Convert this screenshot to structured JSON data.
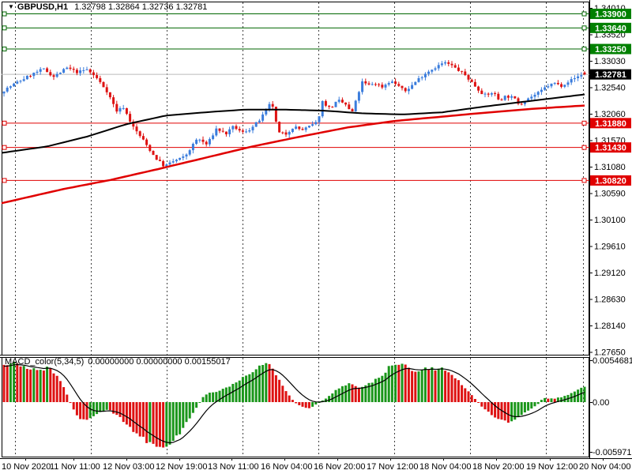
{
  "window": {
    "marker_icon": "▼",
    "symbol": "GBPUSD,H1",
    "ohlc_text": "1.32798 1.32864 1.32736 1.32781"
  },
  "chart_data": {
    "type": "candlestick",
    "symbol": "GBPUSD",
    "timeframe": "H1",
    "open": "1.32798",
    "high": "1.32864",
    "low": "1.32736",
    "close": "1.32781",
    "price_axis": {
      "labels": [
        "1.34010",
        "1.33520",
        "1.33030",
        "1.32540",
        "1.32060",
        "1.31570",
        "1.31080",
        "1.30590",
        "1.30100",
        "1.29610",
        "1.29120",
        "1.28630",
        "1.28140",
        "1.27650"
      ]
    },
    "time_labels": [
      "10 Nov 2020",
      "11 Nov 11:00",
      "12 Nov 03:00",
      "12 Nov 19:00",
      "13 Nov 11:00",
      "16 Nov 04:00",
      "16 Nov 20:00",
      "17 Nov 12:00",
      "18 Nov 04:00",
      "18 Nov 20:00",
      "19 Nov 12:00",
      "20 Nov 04:00"
    ],
    "day_gridlines_x": [
      19,
      115,
      211,
      307,
      403,
      499,
      595,
      691,
      738
    ],
    "resistance_levels": [
      {
        "label": "1.33900"
      },
      {
        "label": "1.33640"
      },
      {
        "label": "1.33250"
      }
    ],
    "support_levels": [
      {
        "label": "1.31880"
      },
      {
        "label": "1.31430"
      },
      {
        "label": "1.30820"
      }
    ],
    "current_price_label": "1.32781",
    "price_path": [
      [
        4,
        1.3248
      ],
      [
        20,
        1.3262
      ],
      [
        40,
        1.3278
      ],
      [
        55,
        1.3288
      ],
      [
        68,
        1.3274
      ],
      [
        85,
        1.329
      ],
      [
        98,
        1.3282
      ],
      [
        110,
        1.3287
      ],
      [
        122,
        1.3272
      ],
      [
        135,
        1.3248
      ],
      [
        148,
        1.321
      ],
      [
        156,
        1.3218
      ],
      [
        168,
        1.3182
      ],
      [
        182,
        1.3155
      ],
      [
        196,
        1.3125
      ],
      [
        208,
        1.3108
      ],
      [
        220,
        1.3118
      ],
      [
        234,
        1.3126
      ],
      [
        250,
        1.316
      ],
      [
        262,
        1.3148
      ],
      [
        274,
        1.3178
      ],
      [
        286,
        1.3168
      ],
      [
        296,
        1.3182
      ],
      [
        306,
        1.317
      ],
      [
        318,
        1.3178
      ],
      [
        330,
        1.3196
      ],
      [
        344,
        1.3228
      ],
      [
        352,
        1.317
      ],
      [
        362,
        1.3168
      ],
      [
        372,
        1.3182
      ],
      [
        382,
        1.3175
      ],
      [
        392,
        1.3182
      ],
      [
        402,
        1.319
      ],
      [
        408,
        1.3228
      ],
      [
        418,
        1.3215
      ],
      [
        428,
        1.323
      ],
      [
        438,
        1.3222
      ],
      [
        445,
        1.3205
      ],
      [
        452,
        1.3235
      ],
      [
        458,
        1.3264
      ],
      [
        466,
        1.3258
      ],
      [
        474,
        1.3262
      ],
      [
        484,
        1.3255
      ],
      [
        494,
        1.3266
      ],
      [
        504,
        1.3258
      ],
      [
        512,
        1.3246
      ],
      [
        520,
        1.3256
      ],
      [
        530,
        1.327
      ],
      [
        540,
        1.3282
      ],
      [
        552,
        1.3292
      ],
      [
        562,
        1.33
      ],
      [
        570,
        1.3296
      ],
      [
        578,
        1.3288
      ],
      [
        588,
        1.3278
      ],
      [
        598,
        1.3262
      ],
      [
        608,
        1.3246
      ],
      [
        616,
        1.3238
      ],
      [
        624,
        1.3246
      ],
      [
        632,
        1.323
      ],
      [
        640,
        1.3238
      ],
      [
        650,
        1.3235
      ],
      [
        658,
        1.3222
      ],
      [
        666,
        1.3232
      ],
      [
        674,
        1.3238
      ],
      [
        682,
        1.3244
      ],
      [
        692,
        1.3256
      ],
      [
        702,
        1.3262
      ],
      [
        710,
        1.3257
      ],
      [
        718,
        1.3264
      ],
      [
        726,
        1.327
      ],
      [
        734,
        1.3276
      ],
      [
        740,
        1.3281
      ],
      [
        744,
        1.3278
      ]
    ],
    "ma_fast_black": [
      [
        2,
        1.3133
      ],
      [
        60,
        1.3145
      ],
      [
        110,
        1.3163
      ],
      [
        160,
        1.3186
      ],
      [
        210,
        1.3202
      ],
      [
        260,
        1.3208
      ],
      [
        310,
        1.3213
      ],
      [
        360,
        1.3213
      ],
      [
        410,
        1.3211
      ],
      [
        460,
        1.3206
      ],
      [
        510,
        1.3204
      ],
      [
        560,
        1.3208
      ],
      [
        610,
        1.3218
      ],
      [
        660,
        1.3227
      ],
      [
        700,
        1.3234
      ],
      [
        745,
        1.3242
      ]
    ],
    "ma_slow_red": [
      [
        2,
        1.304
      ],
      [
        80,
        1.3066
      ],
      [
        140,
        1.3083
      ],
      [
        200,
        1.3103
      ],
      [
        260,
        1.3124
      ],
      [
        320,
        1.3145
      ],
      [
        380,
        1.3163
      ],
      [
        440,
        1.318
      ],
      [
        500,
        1.3192
      ],
      [
        560,
        1.32
      ],
      [
        620,
        1.3208
      ],
      [
        680,
        1.3215
      ],
      [
        745,
        1.3221
      ]
    ],
    "macd": {
      "label": "MACD_color(5,34,5)",
      "values_text": "0.00000000 0.00000000 0.00155017",
      "axis_max_label": "0.0054681",
      "axis_zero_label": "0.00",
      "axis_min_label": "-0.0059717",
      "hist_path": [
        [
          4,
          0.0047
        ],
        [
          20,
          0.0049
        ],
        [
          35,
          0.0043
        ],
        [
          50,
          0.004
        ],
        [
          62,
          0.0043
        ],
        [
          72,
          0.0034
        ],
        [
          82,
          0.0016
        ],
        [
          90,
          -0.0004
        ],
        [
          100,
          -0.002
        ],
        [
          108,
          -0.0024
        ],
        [
          118,
          -0.0018
        ],
        [
          128,
          -0.0012
        ],
        [
          138,
          -0.001
        ],
        [
          148,
          -0.0016
        ],
        [
          158,
          -0.0026
        ],
        [
          170,
          -0.0037
        ],
        [
          184,
          -0.0048
        ],
        [
          198,
          -0.0055
        ],
        [
          206,
          -0.0057
        ],
        [
          216,
          -0.0051
        ],
        [
          228,
          -0.0038
        ],
        [
          238,
          -0.0022
        ],
        [
          248,
          -0.0008
        ],
        [
          256,
          0.0005
        ],
        [
          266,
          0.0013
        ],
        [
          276,
          0.0013
        ],
        [
          288,
          0.0019
        ],
        [
          300,
          0.0026
        ],
        [
          312,
          0.0032
        ],
        [
          322,
          0.004
        ],
        [
          332,
          0.0049
        ],
        [
          340,
          0.0047
        ],
        [
          350,
          0.0034
        ],
        [
          360,
          0.0016
        ],
        [
          370,
          0.0003
        ],
        [
          378,
          -0.0004
        ],
        [
          388,
          -0.0008
        ],
        [
          396,
          -0.0006
        ],
        [
          404,
          -0.0001
        ],
        [
          412,
          0.0004
        ],
        [
          422,
          0.0012
        ],
        [
          432,
          0.0019
        ],
        [
          440,
          0.0023
        ],
        [
          448,
          0.0021
        ],
        [
          456,
          0.0018
        ],
        [
          464,
          0.0022
        ],
        [
          472,
          0.0026
        ],
        [
          482,
          0.0031
        ],
        [
          492,
          0.0043
        ],
        [
          502,
          0.0051
        ],
        [
          512,
          0.0048
        ],
        [
          522,
          0.0041
        ],
        [
          530,
          0.0038
        ],
        [
          538,
          0.0043
        ],
        [
          548,
          0.0041
        ],
        [
          558,
          0.0043
        ],
        [
          566,
          0.0038
        ],
        [
          576,
          0.003
        ],
        [
          586,
          0.002
        ],
        [
          596,
          0.001
        ],
        [
          604,
          0.0001
        ],
        [
          612,
          -0.0008
        ],
        [
          622,
          -0.0016
        ],
        [
          632,
          -0.0021
        ],
        [
          642,
          -0.0026
        ],
        [
          650,
          -0.0023
        ],
        [
          658,
          -0.0018
        ],
        [
          666,
          -0.0012
        ],
        [
          674,
          -0.0007
        ],
        [
          682,
          -0.0002
        ],
        [
          688,
          0.0006
        ],
        [
          694,
          0.0004
        ],
        [
          702,
          0.0005
        ],
        [
          710,
          0.0006
        ],
        [
          718,
          0.0009
        ],
        [
          726,
          0.0013
        ],
        [
          734,
          0.0017
        ],
        [
          742,
          0.0021
        ]
      ]
    }
  },
  "colors": {
    "bull": "#3A7CDC",
    "bear": "#DE1212",
    "ma_black": "#000000",
    "ma_red": "#E00000",
    "resistance_line": "#006600",
    "resistance_badge": "#008000",
    "support_line": "#E00000",
    "support_badge": "#E00000",
    "current_line": "#BBBBBB",
    "current_badge": "#000000",
    "grid": "#404040",
    "macd_up": "#1A961A",
    "macd_down": "#DE1212",
    "macd_signal": "#000000",
    "bg": "#FFFFFF",
    "text": "#000000"
  }
}
